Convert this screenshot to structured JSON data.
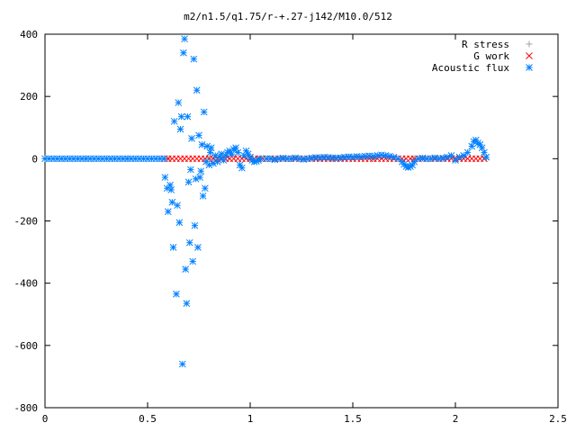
{
  "chart_data": {
    "type": "scatter",
    "title": "m2/n1.5/q1.75/r-+.27-j142/M10.0/512",
    "xlabel": "",
    "ylabel": "",
    "xlim": [
      0,
      2.5
    ],
    "ylim": [
      -800,
      400
    ],
    "x_ticks": [
      0,
      0.5,
      1,
      1.5,
      2,
      2.5
    ],
    "x_tick_labels": [
      "0",
      "0.5",
      "1",
      "1.5",
      "2",
      "2.5"
    ],
    "y_ticks": [
      -800,
      -600,
      -400,
      -200,
      0,
      200,
      400
    ],
    "y_tick_labels": [
      "-800",
      "-600",
      "-400",
      "-200",
      "0",
      "200",
      "400"
    ],
    "grid": false,
    "legend_position": "top-right",
    "series": [
      {
        "name": "R stress",
        "marker": "plus",
        "color": "#a0a0a0",
        "points": [
          [
            0.0,
            0
          ],
          [
            0.2,
            0
          ],
          [
            0.4,
            0
          ],
          [
            0.6,
            0
          ],
          [
            0.8,
            0
          ],
          [
            1.0,
            0
          ],
          [
            1.2,
            0
          ],
          [
            1.4,
            0
          ],
          [
            1.6,
            0
          ],
          [
            1.8,
            0
          ],
          [
            2.0,
            0
          ],
          [
            2.15,
            0
          ]
        ]
      },
      {
        "name": "G work",
        "marker": "cross",
        "color": "#ff0000",
        "points": [
          [
            0.58,
            0
          ],
          [
            0.6,
            0
          ],
          [
            0.62,
            0
          ],
          [
            0.64,
            0
          ],
          [
            0.66,
            0
          ],
          [
            0.68,
            0
          ],
          [
            0.7,
            0
          ],
          [
            0.72,
            0
          ],
          [
            0.74,
            0
          ],
          [
            0.76,
            0
          ],
          [
            0.78,
            0
          ],
          [
            0.8,
            0
          ],
          [
            0.82,
            0
          ],
          [
            0.84,
            0
          ],
          [
            0.86,
            0
          ],
          [
            0.88,
            0
          ],
          [
            0.9,
            0
          ],
          [
            0.92,
            0
          ],
          [
            0.94,
            0
          ],
          [
            0.96,
            0
          ],
          [
            0.98,
            0
          ],
          [
            1.0,
            0
          ],
          [
            1.02,
            0
          ],
          [
            1.04,
            0
          ],
          [
            1.06,
            0
          ],
          [
            1.08,
            0
          ],
          [
            1.1,
            0
          ],
          [
            1.12,
            0
          ],
          [
            1.14,
            0
          ],
          [
            1.16,
            0
          ],
          [
            1.18,
            0
          ],
          [
            1.2,
            0
          ],
          [
            1.22,
            0
          ],
          [
            1.24,
            0
          ],
          [
            1.26,
            0
          ],
          [
            1.28,
            0
          ],
          [
            1.3,
            0
          ],
          [
            1.32,
            0
          ],
          [
            1.34,
            0
          ],
          [
            1.36,
            0
          ],
          [
            1.38,
            0
          ],
          [
            1.4,
            0
          ],
          [
            1.42,
            0
          ],
          [
            1.44,
            0
          ],
          [
            1.46,
            0
          ],
          [
            1.48,
            0
          ],
          [
            1.5,
            0
          ],
          [
            1.52,
            0
          ],
          [
            1.54,
            0
          ],
          [
            1.56,
            0
          ],
          [
            1.58,
            0
          ],
          [
            1.6,
            0
          ],
          [
            1.62,
            0
          ],
          [
            1.64,
            0
          ],
          [
            1.66,
            0
          ],
          [
            1.68,
            0
          ],
          [
            1.7,
            0
          ],
          [
            1.72,
            0
          ],
          [
            1.74,
            0
          ],
          [
            1.76,
            0
          ],
          [
            1.78,
            0
          ],
          [
            1.8,
            0
          ],
          [
            1.82,
            0
          ],
          [
            1.84,
            0
          ],
          [
            1.86,
            0
          ],
          [
            1.88,
            0
          ],
          [
            1.9,
            0
          ],
          [
            1.92,
            0
          ],
          [
            1.94,
            0
          ],
          [
            1.96,
            0
          ],
          [
            1.98,
            0
          ],
          [
            2.0,
            0
          ],
          [
            2.02,
            0
          ],
          [
            2.04,
            0
          ],
          [
            2.06,
            0
          ],
          [
            2.08,
            0
          ],
          [
            2.1,
            0
          ],
          [
            2.12,
            0
          ],
          [
            2.14,
            0
          ]
        ]
      },
      {
        "name": "Acoustic flux",
        "marker": "star",
        "color": "#0080ff",
        "points": [
          [
            0.0,
            0
          ],
          [
            0.02,
            0
          ],
          [
            0.04,
            0
          ],
          [
            0.06,
            0
          ],
          [
            0.08,
            0
          ],
          [
            0.1,
            0
          ],
          [
            0.12,
            0
          ],
          [
            0.14,
            0
          ],
          [
            0.16,
            0
          ],
          [
            0.18,
            0
          ],
          [
            0.2,
            0
          ],
          [
            0.22,
            0
          ],
          [
            0.24,
            0
          ],
          [
            0.26,
            0
          ],
          [
            0.28,
            0
          ],
          [
            0.3,
            0
          ],
          [
            0.32,
            0
          ],
          [
            0.34,
            0
          ],
          [
            0.36,
            0
          ],
          [
            0.38,
            0
          ],
          [
            0.4,
            0
          ],
          [
            0.42,
            0
          ],
          [
            0.44,
            0
          ],
          [
            0.46,
            0
          ],
          [
            0.48,
            0
          ],
          [
            0.5,
            0
          ],
          [
            0.52,
            0
          ],
          [
            0.54,
            0
          ],
          [
            0.56,
            0
          ],
          [
            0.58,
            0
          ],
          [
            0.585,
            -60
          ],
          [
            0.595,
            -95
          ],
          [
            0.6,
            -170
          ],
          [
            0.61,
            -85
          ],
          [
            0.615,
            -100
          ],
          [
            0.62,
            -140
          ],
          [
            0.625,
            -285
          ],
          [
            0.63,
            120
          ],
          [
            0.64,
            -435
          ],
          [
            0.645,
            -150
          ],
          [
            0.65,
            180
          ],
          [
            0.655,
            -205
          ],
          [
            0.66,
            95
          ],
          [
            0.665,
            135
          ],
          [
            0.67,
            -660
          ],
          [
            0.675,
            340
          ],
          [
            0.68,
            385
          ],
          [
            0.685,
            -355
          ],
          [
            0.69,
            -465
          ],
          [
            0.695,
            135
          ],
          [
            0.7,
            -75
          ],
          [
            0.705,
            -270
          ],
          [
            0.71,
            -35
          ],
          [
            0.715,
            65
          ],
          [
            0.72,
            -330
          ],
          [
            0.725,
            320
          ],
          [
            0.73,
            -215
          ],
          [
            0.735,
            -65
          ],
          [
            0.74,
            220
          ],
          [
            0.745,
            -285
          ],
          [
            0.75,
            75
          ],
          [
            0.755,
            -60
          ],
          [
            0.76,
            -40
          ],
          [
            0.765,
            45
          ],
          [
            0.77,
            -120
          ],
          [
            0.775,
            150
          ],
          [
            0.78,
            -95
          ],
          [
            0.785,
            -10
          ],
          [
            0.79,
            40
          ],
          [
            0.8,
            -20
          ],
          [
            0.805,
            20
          ],
          [
            0.81,
            35
          ],
          [
            0.82,
            -15
          ],
          [
            0.83,
            10
          ],
          [
            0.84,
            -10
          ],
          [
            0.85,
            5
          ],
          [
            0.86,
            15
          ],
          [
            0.87,
            -5
          ],
          [
            0.88,
            10
          ],
          [
            0.89,
            20
          ],
          [
            0.9,
            25
          ],
          [
            0.91,
            15
          ],
          [
            0.92,
            30
          ],
          [
            0.93,
            35
          ],
          [
            0.94,
            20
          ],
          [
            0.95,
            -20
          ],
          [
            0.96,
            -30
          ],
          [
            0.97,
            10
          ],
          [
            0.98,
            25
          ],
          [
            0.99,
            15
          ],
          [
            1.0,
            5
          ],
          [
            1.01,
            -5
          ],
          [
            1.02,
            -10
          ],
          [
            1.03,
            -8
          ],
          [
            1.04,
            -5
          ],
          [
            1.05,
            0
          ],
          [
            1.08,
            0
          ],
          [
            1.1,
            0
          ],
          [
            1.12,
            -3
          ],
          [
            1.14,
            0
          ],
          [
            1.16,
            2
          ],
          [
            1.18,
            0
          ],
          [
            1.2,
            0
          ],
          [
            1.22,
            3
          ],
          [
            1.24,
            0
          ],
          [
            1.26,
            -2
          ],
          [
            1.28,
            0
          ],
          [
            1.3,
            2
          ],
          [
            1.32,
            4
          ],
          [
            1.34,
            3
          ],
          [
            1.36,
            5
          ],
          [
            1.38,
            4
          ],
          [
            1.4,
            3
          ],
          [
            1.42,
            2
          ],
          [
            1.44,
            3
          ],
          [
            1.46,
            5
          ],
          [
            1.48,
            6
          ],
          [
            1.5,
            5
          ],
          [
            1.52,
            7
          ],
          [
            1.54,
            6
          ],
          [
            1.56,
            8
          ],
          [
            1.58,
            9
          ],
          [
            1.6,
            8
          ],
          [
            1.62,
            10
          ],
          [
            1.64,
            12
          ],
          [
            1.66,
            10
          ],
          [
            1.68,
            8
          ],
          [
            1.7,
            5
          ],
          [
            1.72,
            0
          ],
          [
            1.74,
            -10
          ],
          [
            1.75,
            -18
          ],
          [
            1.76,
            -25
          ],
          [
            1.77,
            -28
          ],
          [
            1.78,
            -25
          ],
          [
            1.79,
            -20
          ],
          [
            1.8,
            -10
          ],
          [
            1.82,
            0
          ],
          [
            1.84,
            2
          ],
          [
            1.86,
            0
          ],
          [
            1.88,
            0
          ],
          [
            1.9,
            3
          ],
          [
            1.92,
            0
          ],
          [
            1.94,
            2
          ],
          [
            1.96,
            5
          ],
          [
            1.98,
            10
          ],
          [
            2.0,
            -5
          ],
          [
            2.02,
            5
          ],
          [
            2.04,
            10
          ],
          [
            2.06,
            20
          ],
          [
            2.08,
            40
          ],
          [
            2.09,
            55
          ],
          [
            2.1,
            60
          ],
          [
            2.11,
            50
          ],
          [
            2.12,
            45
          ],
          [
            2.13,
            35
          ],
          [
            2.14,
            20
          ],
          [
            2.15,
            5
          ]
        ]
      }
    ]
  }
}
